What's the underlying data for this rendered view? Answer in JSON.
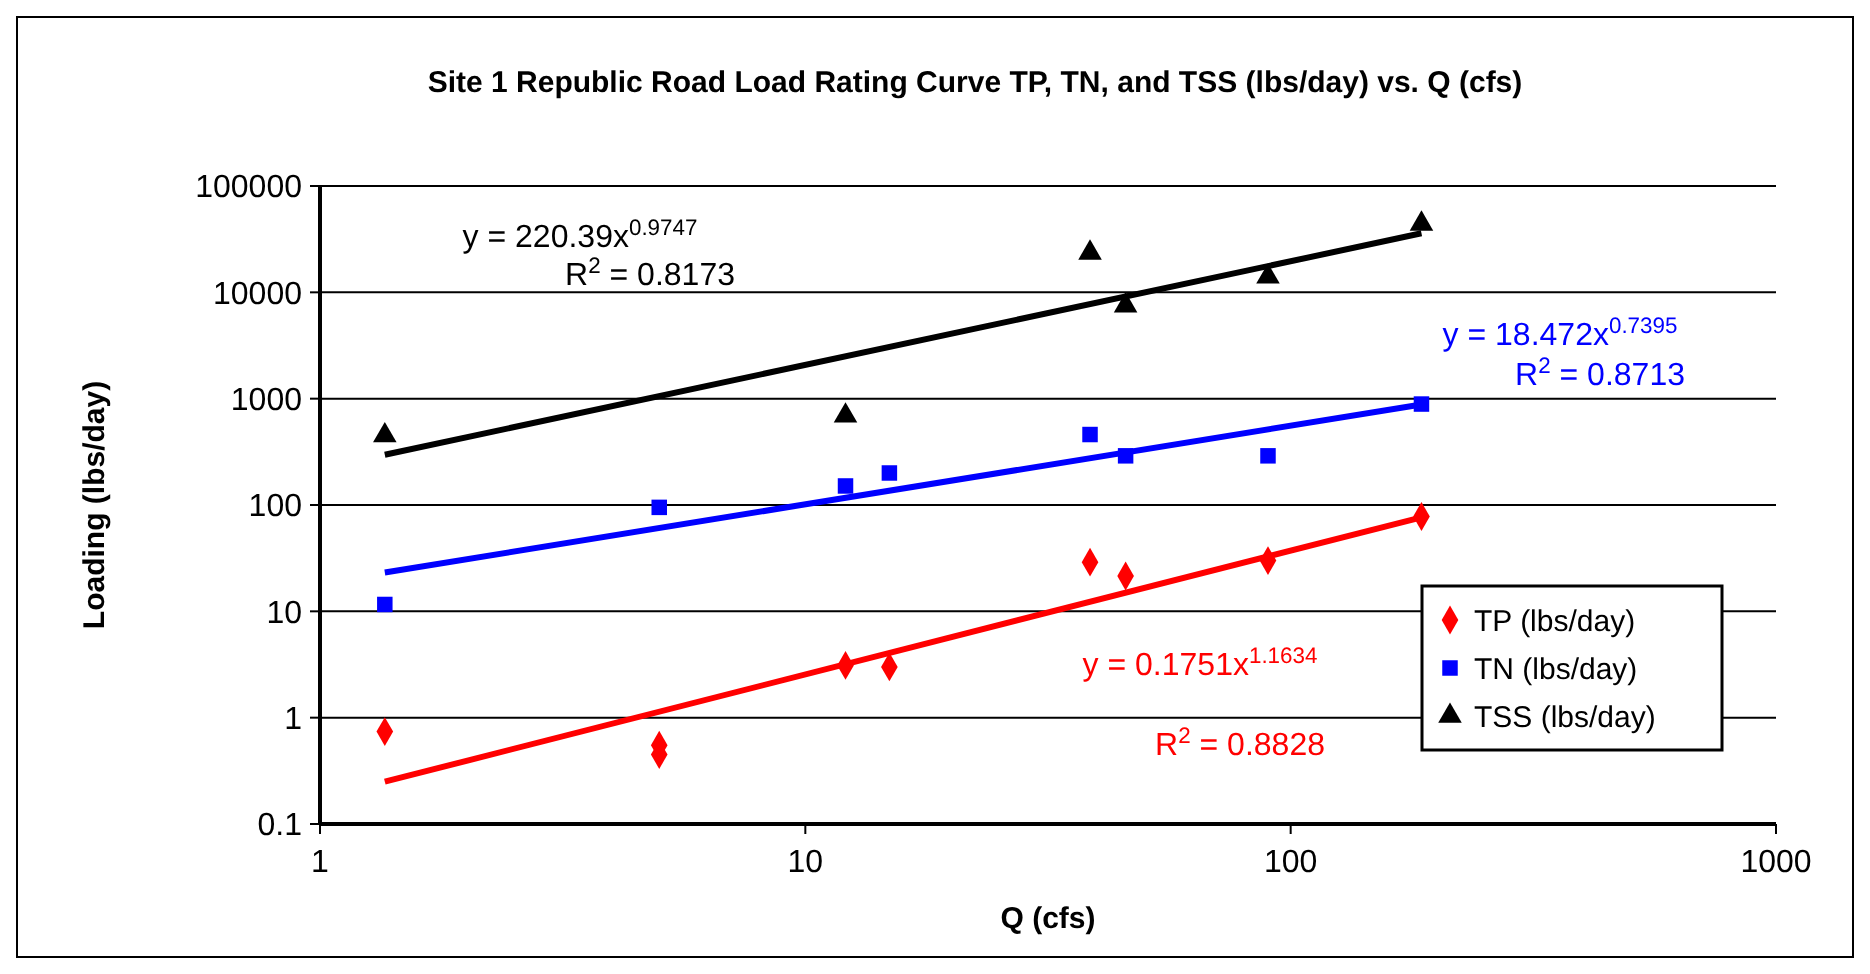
{
  "chart_data": {
    "type": "scatter",
    "title": "Site 1 Republic Road Load Rating Curve TP, TN, and TSS (lbs/day) vs. Q (cfs)",
    "xlabel": "Q (cfs)",
    "ylabel": "Loading (lbs/day)",
    "log": "xy",
    "xlim": [
      1,
      1000
    ],
    "xticks": [
      1,
      10,
      100,
      1000
    ],
    "ylim": [
      0.1,
      100000
    ],
    "yticks": [
      0.1,
      1,
      10,
      100,
      1000,
      10000,
      100000
    ],
    "grid": "y",
    "legend": "bottom right",
    "series": [
      {
        "name": "TP (lbs/day)",
        "color": "#ff0000",
        "marker": "diamond",
        "x": [
          1.36,
          5,
          5,
          12.1,
          14.9,
          38.6,
          45.7,
          89.8,
          186
        ],
        "values": [
          0.74,
          0.55,
          0.45,
          3.1,
          3.0,
          29,
          21.5,
          30,
          78
        ]
      },
      {
        "name": "TN (lbs/day)",
        "color": "#0000ff",
        "marker": "square",
        "x": [
          1.36,
          5,
          12.1,
          14.9,
          38.6,
          45.7,
          89.8,
          186
        ],
        "values": [
          11.6,
          95,
          151,
          200,
          460,
          290,
          290,
          890
        ]
      },
      {
        "name": "TSS (lbs/day)",
        "color": "#000000",
        "marker": "triangle",
        "x": [
          1.36,
          12.1,
          38.6,
          45.7,
          89.8,
          186
        ],
        "values": [
          450,
          690,
          23500,
          7500,
          14000,
          44000
        ]
      },
      {
        "type": "line",
        "color": "#ff0000",
        "x": [
          1.36,
          186
        ],
        "values": [
          0.25,
          76.6
        ]
      },
      {
        "type": "line",
        "color": "#0000ff",
        "x": [
          1.36,
          186
        ],
        "values": [
          23.2,
          881
        ]
      },
      {
        "type": "line",
        "color": "#000000",
        "x": [
          1.36,
          186
        ],
        "values": [
          297,
          35900
        ]
      }
    ],
    "annotations": [
      "y = 0.1751x$^{1.1634}$",
      "R$^{2}$ = 0.8828",
      "y = 18.472x$^{0.7395}$",
      "R$^{2}$ = 0.8713",
      "y = 220.39x$^{0.9747}$",
      "R$^{2}$ = 0.8173"
    ]
  }
}
